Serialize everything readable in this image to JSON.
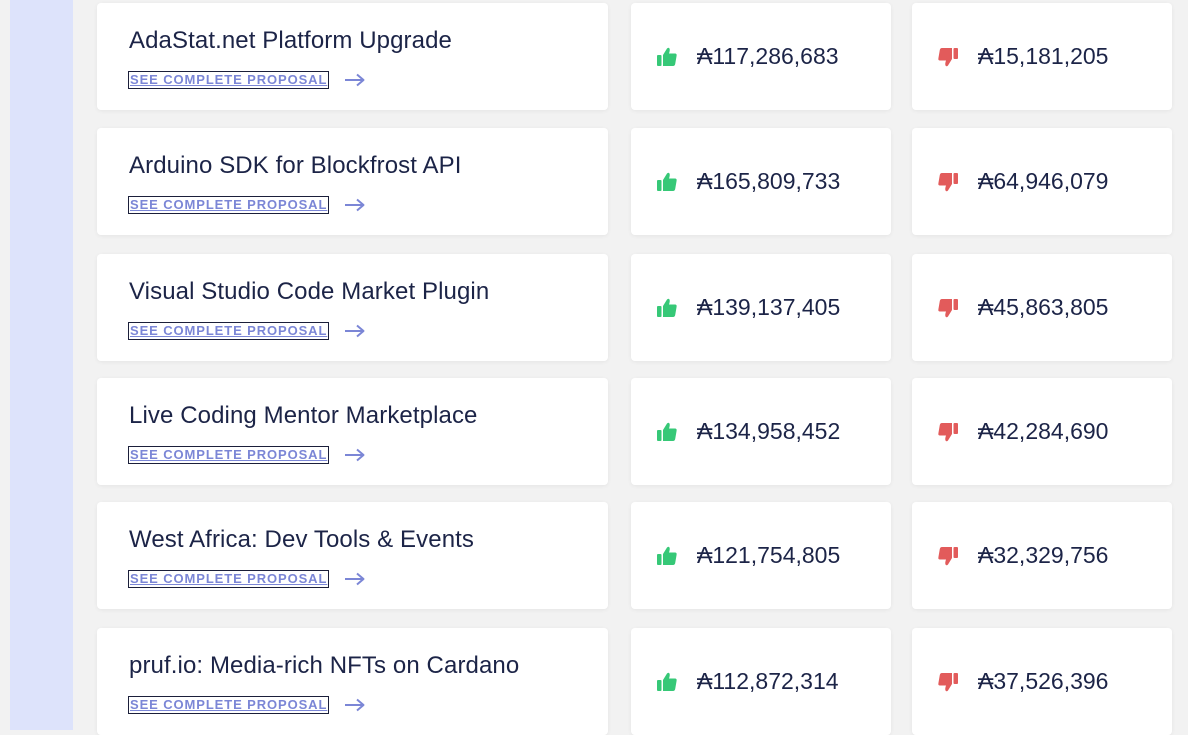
{
  "link_label": "SEE COMPLETE PROPOSAL",
  "colors": {
    "sidebar": "#dde3fb",
    "link": "#7b86d6",
    "yes_icon": "#36c877",
    "no_icon": "#e25b5b",
    "text": "#1c2447"
  },
  "icons": {
    "yes": "thumbs-up-icon",
    "no": "thumbs-down-icon",
    "link": "arrow-right-icon"
  },
  "proposals": [
    {
      "title": "AdaStat.net Platform Upgrade",
      "yes_votes": "₳117,286,683",
      "no_votes": "₳15,181,205"
    },
    {
      "title": "Arduino SDK for Blockfrost API",
      "yes_votes": "₳165,809,733",
      "no_votes": "₳64,946,079"
    },
    {
      "title": "Visual Studio Code Market Plugin",
      "yes_votes": "₳139,137,405",
      "no_votes": "₳45,863,805"
    },
    {
      "title": "Live Coding Mentor Marketplace",
      "yes_votes": "₳134,958,452",
      "no_votes": "₳42,284,690"
    },
    {
      "title": "West Africa: Dev Tools & Events",
      "yes_votes": "₳121,754,805",
      "no_votes": "₳32,329,756"
    },
    {
      "title": "pruf.io: Media-rich NFTs on Cardano",
      "yes_votes": "₳112,872,314",
      "no_votes": "₳37,526,396"
    }
  ]
}
